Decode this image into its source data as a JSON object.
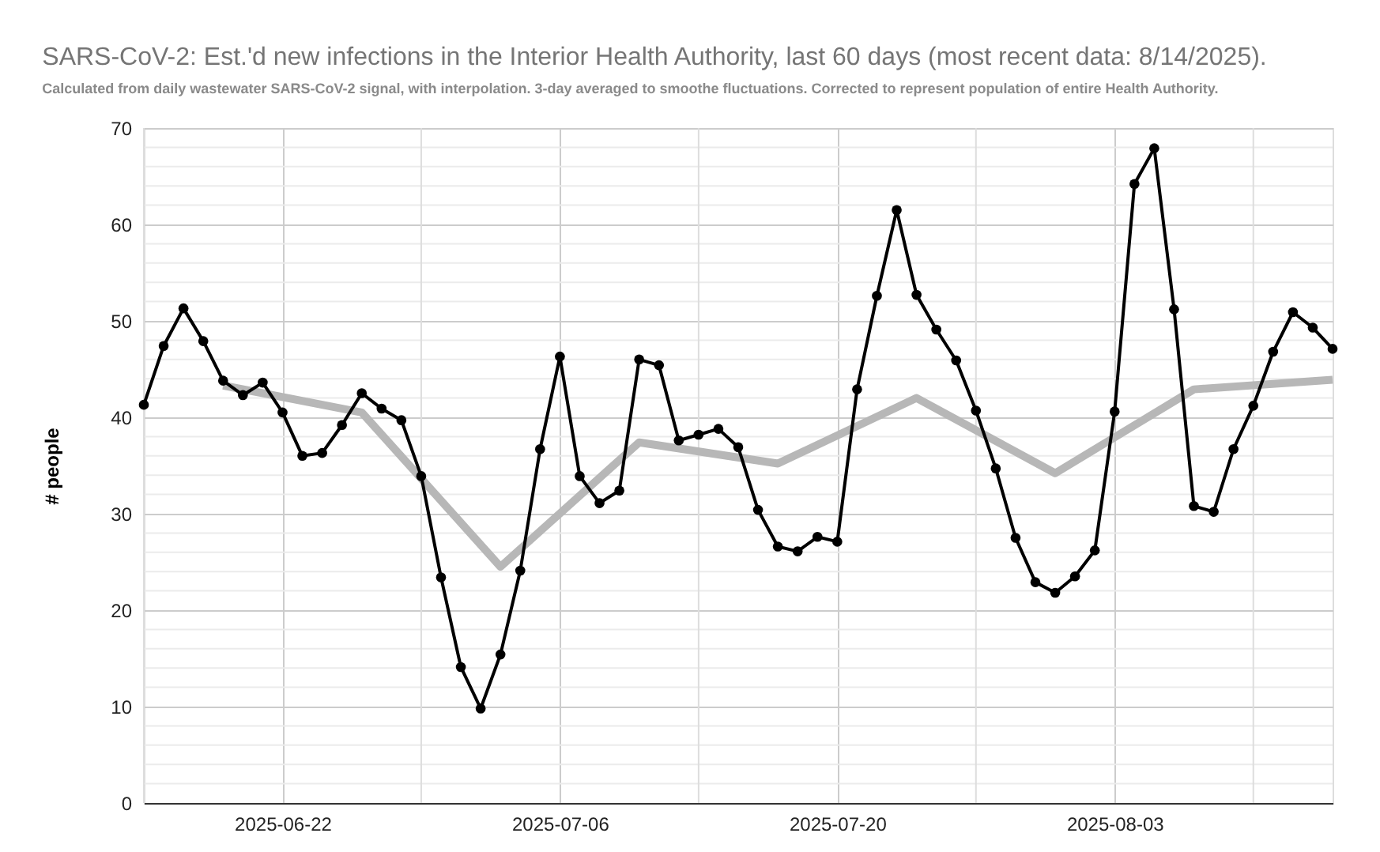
{
  "chart_data": {
    "type": "line",
    "title": "SARS-CoV-2: Est.'d new infections in the Interior Health Authority, last 60 days (most recent data: 8/14/2025).",
    "subtitle": "Calculated from daily wastewater SARS-CoV-2 signal, with interpolation. 3-day averaged to smoothe fluctuations. Corrected to represent population of entire Health Authority.",
    "ylabel": "# people",
    "series": [
      {
        "color": "#b7b7b7",
        "marker": "none",
        "x": [
          "2025-06-19",
          "2025-06-26",
          "2025-07-03",
          "2025-07-10",
          "2025-07-17",
          "2025-07-24",
          "2025-07-31",
          "2025-08-07",
          "2025-08-14"
        ],
        "values": [
          43.3,
          40.5,
          24.5,
          37.4,
          35.2,
          42.0,
          34.2,
          42.9,
          43.9
        ]
      },
      {
        "color": "#000000",
        "marker": "circle",
        "x": [
          "2025-06-15",
          "2025-06-16",
          "2025-06-17",
          "2025-06-18",
          "2025-06-19",
          "2025-06-20",
          "2025-06-21",
          "2025-06-22",
          "2025-06-23",
          "2025-06-24",
          "2025-06-25",
          "2025-06-26",
          "2025-06-27",
          "2025-06-28",
          "2025-06-29",
          "2025-06-30",
          "2025-07-01",
          "2025-07-02",
          "2025-07-03",
          "2025-07-04",
          "2025-07-05",
          "2025-07-06",
          "2025-07-07",
          "2025-07-08",
          "2025-07-09",
          "2025-07-10",
          "2025-07-11",
          "2025-07-12",
          "2025-07-13",
          "2025-07-14",
          "2025-07-15",
          "2025-07-16",
          "2025-07-17",
          "2025-07-18",
          "2025-07-19",
          "2025-07-20",
          "2025-07-21",
          "2025-07-22",
          "2025-07-23",
          "2025-07-24",
          "2025-07-25",
          "2025-07-26",
          "2025-07-27",
          "2025-07-28",
          "2025-07-29",
          "2025-07-30",
          "2025-07-31",
          "2025-08-01",
          "2025-08-02",
          "2025-08-03",
          "2025-08-04",
          "2025-08-05",
          "2025-08-06",
          "2025-08-07",
          "2025-08-08",
          "2025-08-09",
          "2025-08-10",
          "2025-08-11",
          "2025-08-12",
          "2025-08-13",
          "2025-08-14"
        ],
        "values": [
          41.3,
          47.4,
          51.3,
          47.9,
          43.8,
          42.3,
          43.6,
          40.5,
          36.0,
          36.3,
          39.2,
          42.5,
          40.9,
          39.7,
          33.9,
          23.4,
          14.1,
          9.8,
          15.4,
          24.1,
          36.7,
          46.3,
          33.9,
          31.1,
          32.4,
          46.0,
          45.4,
          37.6,
          38.2,
          38.8,
          36.9,
          30.4,
          26.6,
          26.1,
          27.6,
          27.1,
          42.9,
          52.6,
          61.5,
          52.7,
          49.1,
          45.9,
          40.7,
          34.7,
          27.5,
          22.9,
          21.8,
          23.5,
          26.2,
          40.6,
          64.2,
          67.9,
          51.2,
          30.8,
          30.2,
          36.7,
          41.2,
          46.8,
          50.9,
          49.3,
          47.1
        ]
      }
    ],
    "xlim": [
      "2025-06-15",
      "2025-08-14"
    ],
    "xticks": [
      {
        "value": "2025-06-15",
        "label": null
      },
      {
        "value": "2025-06-22",
        "label": "2025-06-22"
      },
      {
        "value": "2025-06-29",
        "label": null
      },
      {
        "value": "2025-07-06",
        "label": "2025-07-06"
      },
      {
        "value": "2025-07-13",
        "label": null
      },
      {
        "value": "2025-07-20",
        "label": "2025-07-20"
      },
      {
        "value": "2025-07-27",
        "label": null
      },
      {
        "value": "2025-08-03",
        "label": "2025-08-03"
      },
      {
        "value": "2025-08-10",
        "label": null
      }
    ],
    "ylim": [
      0,
      70
    ],
    "yticks": [
      0,
      {
        "value": 2,
        "label": null
      },
      {
        "value": 4,
        "label": null
      },
      {
        "value": 6,
        "label": null
      },
      {
        "value": 8,
        "label": null
      },
      10,
      {
        "value": 12,
        "label": null
      },
      {
        "value": 14,
        "label": null
      },
      {
        "value": 16,
        "label": null
      },
      {
        "value": 18,
        "label": null
      },
      20,
      {
        "value": 22,
        "label": null
      },
      {
        "value": 24,
        "label": null
      },
      {
        "value": 26,
        "label": null
      },
      {
        "value": 28,
        "label": null
      },
      30,
      {
        "value": 32,
        "label": null
      },
      {
        "value": 34,
        "label": null
      },
      {
        "value": 36,
        "label": null
      },
      {
        "value": 38,
        "label": null
      },
      40,
      {
        "value": 42,
        "label": null
      },
      {
        "value": 44,
        "label": null
      },
      {
        "value": 46,
        "label": null
      },
      {
        "value": 48,
        "label": null
      },
      50,
      {
        "value": 52,
        "label": null
      },
      {
        "value": 54,
        "label": null
      },
      {
        "value": 56,
        "label": null
      },
      {
        "value": 58,
        "label": null
      },
      60,
      {
        "value": 62,
        "label": null
      },
      {
        "value": 64,
        "label": null
      },
      {
        "value": 66,
        "label": null
      },
      {
        "value": 68,
        "label": null
      },
      70
    ],
    "grid": true,
    "legend": false,
    "line_style": "solid"
  }
}
